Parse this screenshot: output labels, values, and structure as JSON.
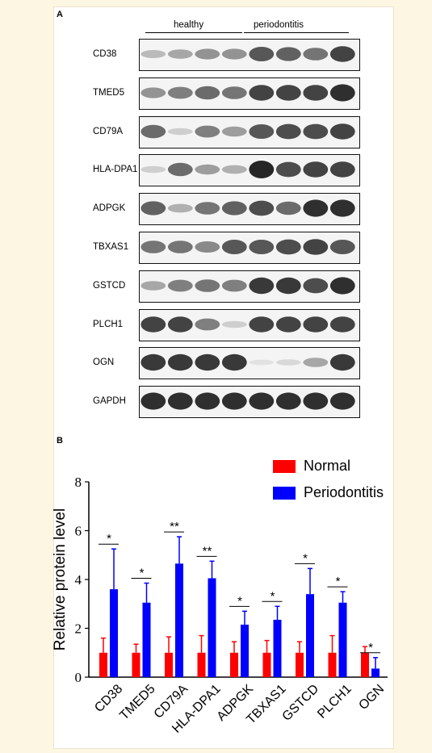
{
  "panel_a": {
    "label": "A",
    "group_healthy": "healthy",
    "group_periodontitis": "periodontitis",
    "blots": [
      {
        "name": "CD38",
        "bands": [
          0.25,
          0.35,
          0.45,
          0.45,
          0.75,
          0.7,
          0.6,
          0.85
        ]
      },
      {
        "name": "TMED5",
        "bands": [
          0.45,
          0.55,
          0.65,
          0.6,
          0.85,
          0.85,
          0.85,
          0.95
        ]
      },
      {
        "name": "CD79A",
        "bands": [
          0.65,
          0.15,
          0.55,
          0.4,
          0.75,
          0.8,
          0.8,
          0.85
        ]
      },
      {
        "name": "HLA-DPA1",
        "bands": [
          0.15,
          0.65,
          0.4,
          0.3,
          1.0,
          0.8,
          0.85,
          0.85
        ]
      },
      {
        "name": "ADPGK",
        "bands": [
          0.7,
          0.3,
          0.6,
          0.7,
          0.8,
          0.65,
          0.95,
          0.95
        ]
      },
      {
        "name": "TBXAS1",
        "bands": [
          0.6,
          0.6,
          0.5,
          0.75,
          0.75,
          0.8,
          0.85,
          0.75
        ]
      },
      {
        "name": "GSTCD",
        "bands": [
          0.35,
          0.55,
          0.6,
          0.55,
          0.9,
          0.9,
          0.8,
          0.95
        ]
      },
      {
        "name": "PLCH1",
        "bands": [
          0.85,
          0.85,
          0.55,
          0.15,
          0.85,
          0.85,
          0.85,
          0.85
        ]
      },
      {
        "name": "OGN",
        "bands": [
          0.9,
          0.9,
          0.9,
          0.9,
          0.05,
          0.1,
          0.35,
          0.9
        ]
      },
      {
        "name": "GAPDH",
        "bands": [
          0.95,
          0.95,
          0.95,
          0.95,
          0.95,
          0.95,
          0.95,
          0.95
        ]
      }
    ]
  },
  "panel_b": {
    "label": "B"
  },
  "chart_data": {
    "type": "bar",
    "categories": [
      "CD38",
      "TMED5",
      "CD79A",
      "HLA-DPA1",
      "ADPGK",
      "TBXAS1",
      "GSTCD",
      "PLCH1",
      "OGN"
    ],
    "ylabel": "Relative protein level",
    "ylim": [
      0,
      8
    ],
    "yticks": [
      "0",
      "2",
      "4",
      "6",
      "8"
    ],
    "legend_position": "top-right",
    "series": [
      {
        "name": "Normal",
        "color": "#ff0000",
        "values": [
          1,
          1,
          1,
          1,
          1,
          1,
          1,
          1,
          1
        ],
        "errors": [
          0.6,
          0.35,
          0.65,
          0.7,
          0.45,
          0.5,
          0.45,
          0.7,
          0.25
        ]
      },
      {
        "name": "Periodontitis",
        "color": "#0000ff",
        "values": [
          3.6,
          3.05,
          4.65,
          4.05,
          2.15,
          2.35,
          3.4,
          3.05,
          0.35
        ],
        "errors": [
          1.65,
          0.8,
          1.1,
          0.7,
          0.55,
          0.55,
          1.05,
          0.45,
          0.45
        ]
      }
    ],
    "significance": [
      "*",
      "*",
      "**",
      "**",
      "*",
      "*",
      "*",
      "*",
      "*"
    ]
  }
}
